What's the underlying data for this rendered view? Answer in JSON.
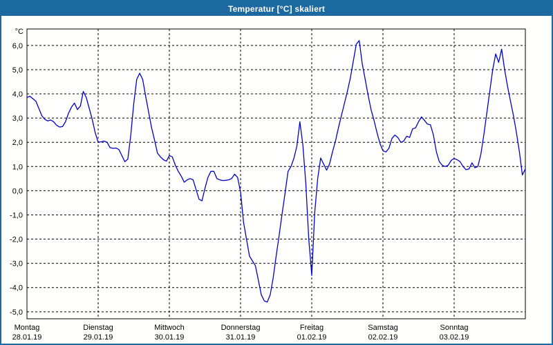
{
  "window": {
    "title": "Temperatur [°C] skaliert"
  },
  "colors": {
    "titlebar_bg": "#1d6aa0",
    "frame_border": "#1d6aa0",
    "title_text": "#ffffff",
    "line": "#0000cc",
    "grid": "#000000",
    "axis_text": "#000000",
    "plot_background": "#fffffe"
  },
  "chart_data": {
    "type": "line",
    "title": "Temperatur [°C] skaliert",
    "unit_label": "°C",
    "grid": "dashed",
    "legend": "none",
    "ylim": [
      -5.29,
      6.68
    ],
    "y_tick_values": [
      6,
      5,
      4,
      3,
      2,
      1,
      0,
      -1,
      -2,
      -3,
      -4,
      -5
    ],
    "y_tick_labels": [
      "6,0",
      "5,0",
      "4,0",
      "3,0",
      "2,0",
      "1,0",
      "0,0",
      "-1,0",
      "-2,0",
      "-3,0",
      "-4,0",
      "-5,0"
    ],
    "x_days": [
      {
        "name": "Montag",
        "date": "28.01.19"
      },
      {
        "name": "Dienstag",
        "date": "29.01.19"
      },
      {
        "name": "Mittwoch",
        "date": "30.01.19"
      },
      {
        "name": "Donnerstag",
        "date": "31.01.19"
      },
      {
        "name": "Freitag",
        "date": "01.02.19"
      },
      {
        "name": "Samstag",
        "date": "02.02.19"
      },
      {
        "name": "Sonntag",
        "date": "03.02.19"
      }
    ],
    "x_total_hours": 168,
    "x_step_hours": 1,
    "series": [
      {
        "name": "Temperatur",
        "color": "#0000cc",
        "values": [
          3.85,
          3.9,
          3.8,
          3.7,
          3.4,
          3.1,
          2.95,
          2.88,
          2.92,
          2.85,
          2.7,
          2.63,
          2.65,
          2.85,
          3.2,
          3.45,
          3.62,
          3.35,
          3.5,
          4.1,
          3.85,
          3.4,
          2.95,
          2.4,
          2.0,
          2.02,
          2.05,
          2.0,
          1.78,
          1.75,
          1.76,
          1.7,
          1.45,
          1.2,
          1.3,
          2.3,
          3.6,
          4.6,
          4.85,
          4.6,
          3.9,
          3.25,
          2.6,
          2.1,
          1.55,
          1.4,
          1.28,
          1.22,
          1.45,
          1.4,
          1.05,
          0.8,
          0.6,
          0.35,
          0.45,
          0.5,
          0.45,
          0.05,
          -0.35,
          -0.42,
          0.1,
          0.55,
          0.8,
          0.8,
          0.5,
          0.45,
          0.42,
          0.43,
          0.45,
          0.5,
          0.68,
          0.55,
          -0.05,
          -1.3,
          -2.0,
          -2.7,
          -2.9,
          -3.1,
          -3.7,
          -4.3,
          -4.55,
          -4.6,
          -4.3,
          -3.6,
          -2.7,
          -1.85,
          -0.95,
          -0.1,
          0.8,
          1.0,
          1.35,
          1.85,
          2.85,
          1.9,
          0.3,
          -2.0,
          -3.5,
          -0.9,
          0.5,
          1.35,
          1.1,
          0.85,
          1.1,
          1.6,
          2.05,
          2.6,
          3.1,
          3.6,
          4.1,
          4.65,
          5.35,
          6.05,
          6.2,
          5.25,
          4.6,
          3.95,
          3.35,
          2.9,
          2.4,
          1.95,
          1.65,
          1.6,
          1.75,
          2.15,
          2.3,
          2.2,
          2.0,
          2.05,
          2.25,
          2.2,
          2.55,
          2.6,
          2.85,
          3.05,
          2.9,
          2.75,
          2.72,
          2.3,
          1.6,
          1.2,
          1.05,
          1.0,
          1.05,
          1.25,
          1.33,
          1.28,
          1.2,
          1.0,
          0.87,
          0.9,
          1.15,
          0.95,
          1.0,
          1.5,
          2.3,
          3.2,
          4.1,
          5.0,
          5.65,
          5.3,
          5.85,
          5.0,
          4.3,
          3.7,
          3.1,
          2.4,
          1.6,
          0.65,
          0.9
        ]
      }
    ]
  }
}
